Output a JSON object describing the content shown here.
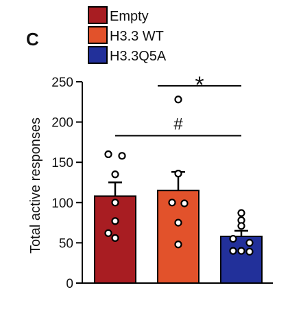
{
  "panel_label": "C",
  "chart_data": {
    "type": "bar",
    "categories": [
      "Empty",
      "H3.3 WT",
      "H3.3Q5A"
    ],
    "series": [
      {
        "values": [
          108,
          115,
          58
        ],
        "errors": [
          17,
          23,
          7
        ],
        "colors": [
          "#A81D22",
          "#E2522B",
          "#22309A"
        ],
        "points": [
          [
            160,
            158,
            135,
            100,
            77,
            62,
            56
          ],
          [
            228,
            136,
            100,
            99,
            75,
            48
          ],
          [
            87,
            78,
            71,
            55,
            50,
            40,
            40,
            39
          ]
        ]
      }
    ],
    "legend": {
      "entries": [
        {
          "label": "Empty",
          "color": "#A81D22"
        },
        {
          "label": "H3.3 WT",
          "color": "#E2522B"
        },
        {
          "label": "H3.3Q5A",
          "color": "#22309A"
        }
      ],
      "placement": "top"
    },
    "ylabel": "Total active responses",
    "xlabel": "",
    "ylim": [
      0,
      250
    ],
    "yticks": [
      0,
      50,
      100,
      150,
      200,
      250
    ],
    "grid": false,
    "annotations": [
      {
        "label": "#",
        "from": 0,
        "to": 2,
        "y": 183
      },
      {
        "label": "*",
        "from": 1,
        "to": 2,
        "y": 245
      }
    ]
  }
}
